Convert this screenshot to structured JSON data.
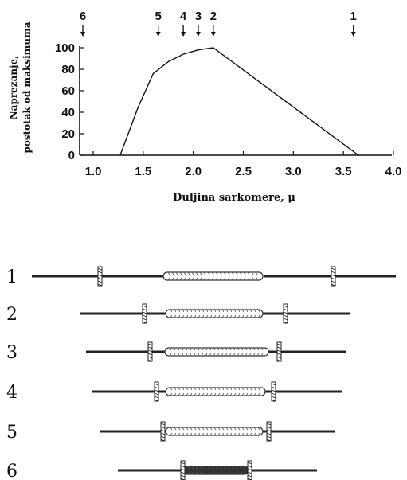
{
  "chart_data": {
    "type": "line",
    "xlabel": "Duljina sarkomere, μ",
    "ylabel_line1": "Naprezanje,",
    "ylabel_line2": "postotak od maksimuma",
    "x_ticks": [
      "1.0",
      "1.5",
      "2.0",
      "2.5",
      "3.0",
      "3.5",
      "4.0"
    ],
    "y_ticks": [
      "0",
      "20",
      "40",
      "60",
      "80",
      "100"
    ],
    "xlim": [
      1.0,
      4.0
    ],
    "ylim": [
      0,
      100
    ],
    "curve": [
      {
        "x": 1.27,
        "y": 0
      },
      {
        "x": 1.45,
        "y": 45
      },
      {
        "x": 1.6,
        "y": 76
      },
      {
        "x": 1.75,
        "y": 87
      },
      {
        "x": 1.9,
        "y": 94
      },
      {
        "x": 2.05,
        "y": 98
      },
      {
        "x": 2.2,
        "y": 100
      },
      {
        "x": 3.65,
        "y": 0
      }
    ],
    "markers": [
      {
        "label": "6",
        "x": 1.0
      },
      {
        "label": "5",
        "x": 1.65
      },
      {
        "label": "4",
        "x": 1.9
      },
      {
        "label": "3",
        "x": 2.05
      },
      {
        "label": "2",
        "x": 2.2
      },
      {
        "label": "1",
        "x": 3.6
      }
    ]
  },
  "sarcomere_rows": [
    "1",
    "2",
    "3",
    "4",
    "5",
    "6"
  ]
}
